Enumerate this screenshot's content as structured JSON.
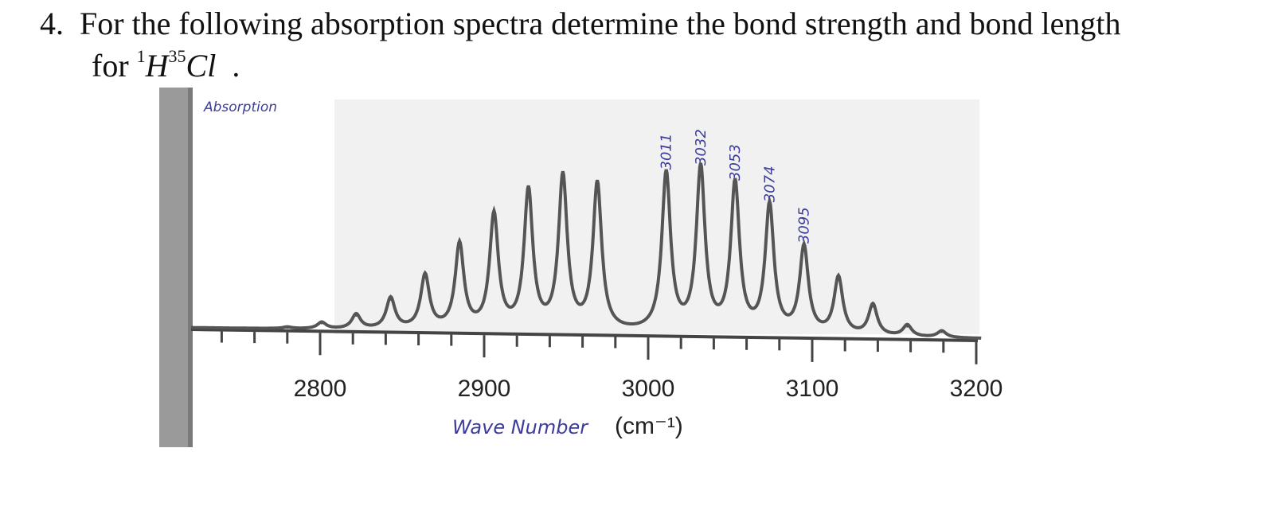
{
  "question": {
    "number": "4.",
    "line1": "For the following absorption spectra determine the bond strength and bond length",
    "line2_prefix": "for",
    "mass_h": "1",
    "atom_h": "H",
    "mass_cl": "35",
    "atom_cl": "Cl",
    "line2_suffix": "."
  },
  "chart_data": {
    "type": "line",
    "title": "",
    "ylabel": "Absorption",
    "xlabel_handwritten": "Wave Number",
    "xlabel_unit": "(cm⁻¹)",
    "xlim": [
      2740,
      3200
    ],
    "xticks": [
      2800,
      2900,
      3000,
      3100,
      3200
    ],
    "xtick_labels": [
      "2800",
      "2900",
      "3000",
      "3100",
      "3200"
    ],
    "grid": false,
    "peaks": [
      {
        "x": 2780,
        "rel_intensity": 0.01
      },
      {
        "x": 2801,
        "rel_intensity": 0.04
      },
      {
        "x": 2822,
        "rel_intensity": 0.09
      },
      {
        "x": 2843,
        "rel_intensity": 0.19
      },
      {
        "x": 2864,
        "rel_intensity": 0.33
      },
      {
        "x": 2885,
        "rel_intensity": 0.52
      },
      {
        "x": 2906,
        "rel_intensity": 0.7
      },
      {
        "x": 2927,
        "rel_intensity": 0.85
      },
      {
        "x": 2948,
        "rel_intensity": 0.94
      },
      {
        "x": 2969,
        "rel_intensity": 0.9
      },
      {
        "x": 3011,
        "rel_intensity": 0.97
      },
      {
        "x": 3032,
        "rel_intensity": 1.0
      },
      {
        "x": 3053,
        "rel_intensity": 0.91
      },
      {
        "x": 3074,
        "rel_intensity": 0.78
      },
      {
        "x": 3095,
        "rel_intensity": 0.53
      },
      {
        "x": 3116,
        "rel_intensity": 0.35
      },
      {
        "x": 3137,
        "rel_intensity": 0.19
      },
      {
        "x": 3158,
        "rel_intensity": 0.07
      },
      {
        "x": 3179,
        "rel_intensity": 0.04
      }
    ],
    "annotations": [
      "3011",
      "3032",
      "3053",
      "3074",
      "3095"
    ],
    "colors": {
      "trace": "#555555",
      "handwriting": "#3c3c9a"
    }
  }
}
